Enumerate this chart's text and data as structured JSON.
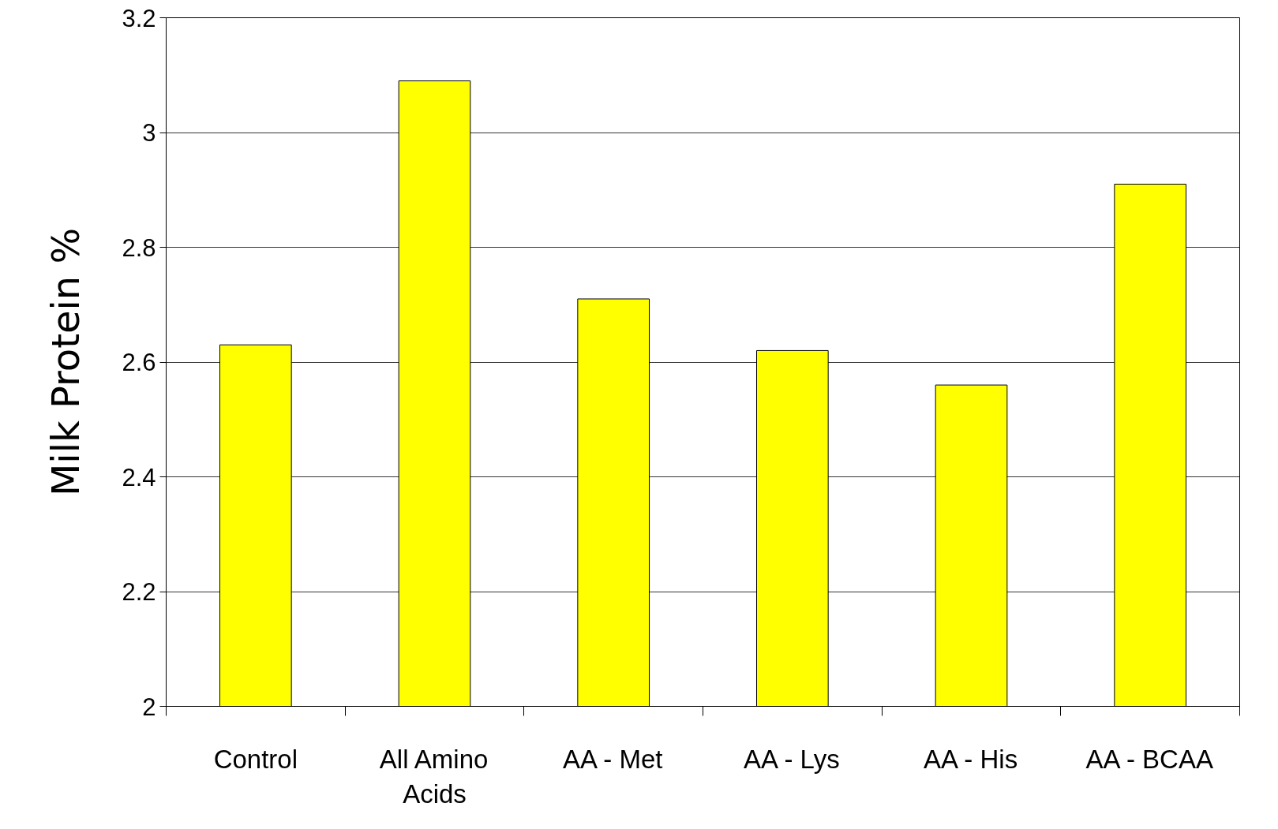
{
  "chart_data": {
    "type": "bar",
    "ylabel": "Milk Protein %",
    "categories": [
      "Control",
      "All Amino Acids",
      "AA - Met",
      "AA - Lys",
      "AA - His",
      "AA - BCAA"
    ],
    "values": [
      2.63,
      3.09,
      2.71,
      2.62,
      2.56,
      2.91
    ],
    "color": "#ffff00",
    "ylim": [
      2,
      3.2
    ],
    "yticks": [
      2,
      2.2,
      2.4,
      2.6,
      2.8,
      3,
      3.2
    ],
    "grid": "y"
  }
}
